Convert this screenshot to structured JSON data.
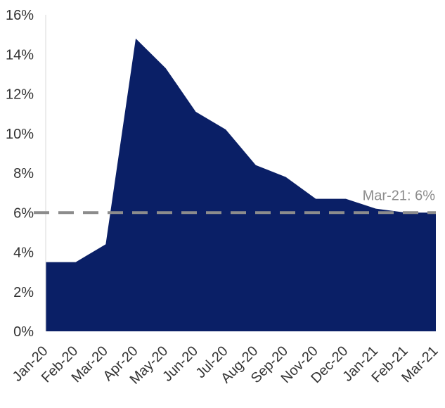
{
  "chart_data": {
    "type": "area",
    "title": "",
    "xlabel": "",
    "ylabel": "",
    "categories": [
      "Jan-20",
      "Feb-20",
      "Mar-20",
      "Apr-20",
      "May-20",
      "Jun-20",
      "Jul-20",
      "Aug-20",
      "Sep-20",
      "Nov-20",
      "Dec-20",
      "Jan-21",
      "Feb-21",
      "Mar-21"
    ],
    "series": [
      {
        "values": [
          3.5,
          3.5,
          4.4,
          14.8,
          13.3,
          11.1,
          10.2,
          8.4,
          7.8,
          6.7,
          6.7,
          6.2,
          6.0,
          6.0
        ]
      }
    ],
    "ylim": [
      0,
      16
    ],
    "yticks": [
      0,
      2,
      4,
      6,
      8,
      10,
      12,
      14,
      16
    ],
    "ytick_labels": [
      "0%",
      "2%",
      "4%",
      "6%",
      "8%",
      "10%",
      "12%",
      "14%",
      "16%"
    ],
    "grid": false,
    "legend": "none",
    "area_color": "#0a1f66",
    "reference_line": {
      "value": 6,
      "label": "Mar-21: 6%",
      "color": "#8c8c8c",
      "style": "dashed"
    }
  }
}
